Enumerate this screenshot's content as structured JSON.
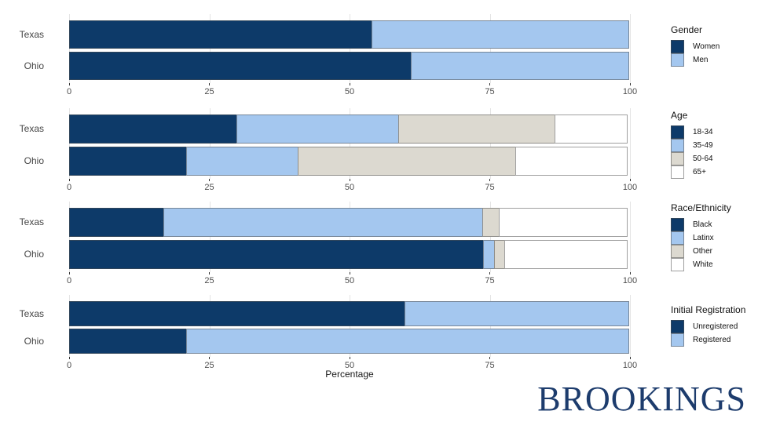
{
  "brand": "BROOKINGS",
  "colors": {
    "dark_blue": "#0d3a69",
    "light_blue": "#a4c7ef",
    "beige": "#dcd9d0",
    "white": "#ffffff",
    "brand_navy": "#1d3c6d",
    "gridline": "#e4e4e4",
    "axis_text": "#4d4d4d"
  },
  "chart_data": {
    "type": "bar",
    "orientation": "horizontal",
    "stacked": true,
    "categories": [
      "Texas",
      "Ohio"
    ],
    "xlabel": "Percentage",
    "xlim": [
      0,
      100
    ],
    "ticks": [
      0,
      25,
      50,
      75,
      100
    ],
    "grid": true,
    "legend_position": "right",
    "panels": [
      {
        "legend_title": "Gender",
        "series": [
          {
            "name": "Women",
            "color": "#0d3a69",
            "values": [
              54,
              61
            ]
          },
          {
            "name": "Men",
            "color": "#a4c7ef",
            "values": [
              46,
              39
            ]
          }
        ]
      },
      {
        "legend_title": "Age",
        "series": [
          {
            "name": "18-34",
            "color": "#0d3a69",
            "values": [
              30,
              21
            ]
          },
          {
            "name": "35-49",
            "color": "#a4c7ef",
            "values": [
              29,
              20
            ]
          },
          {
            "name": "50-64",
            "color": "#dcd9d0",
            "values": [
              28,
              39
            ]
          },
          {
            "name": "65+",
            "color": "#ffffff",
            "values": [
              13,
              20
            ]
          }
        ]
      },
      {
        "legend_title": "Race/Ethnicity",
        "series": [
          {
            "name": "Black",
            "color": "#0d3a69",
            "values": [
              17,
              74
            ]
          },
          {
            "name": "Latinx",
            "color": "#a4c7ef",
            "values": [
              57,
              2
            ]
          },
          {
            "name": "Other",
            "color": "#dcd9d0",
            "values": [
              3,
              2
            ]
          },
          {
            "name": "White",
            "color": "#ffffff",
            "values": [
              23,
              22
            ]
          }
        ]
      },
      {
        "legend_title": "Initial Registration",
        "series": [
          {
            "name": "Unregistered",
            "color": "#0d3a69",
            "values": [
              60,
              21
            ]
          },
          {
            "name": "Registered",
            "color": "#a4c7ef",
            "values": [
              40,
              79
            ]
          }
        ]
      }
    ]
  }
}
